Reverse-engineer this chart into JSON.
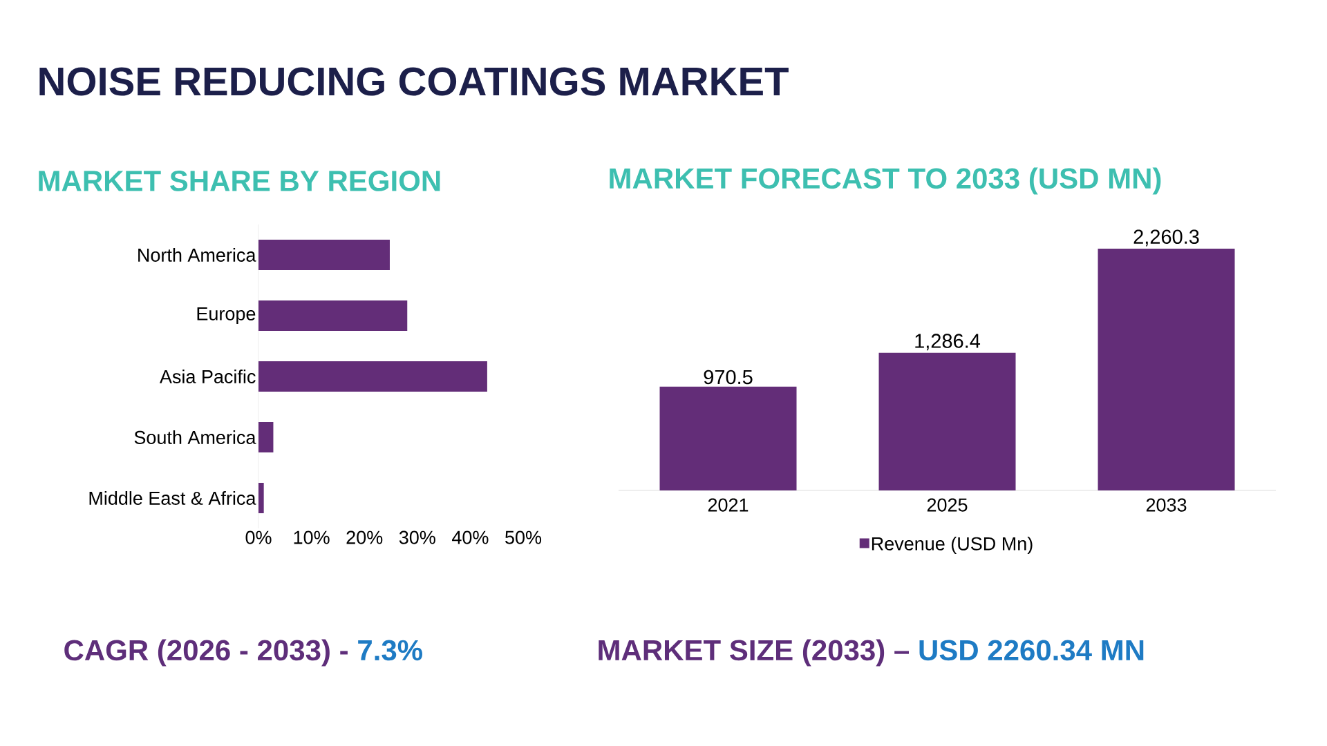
{
  "chart_data": [
    {
      "type": "other",
      "title": "NOISE REDUCING COATINGS MARKET"
    },
    {
      "type": "bar",
      "orientation": "horizontal",
      "title": "MARKET SHARE BY REGION",
      "categories": [
        "North America",
        "Europe",
        "Asia Pacific",
        "South America",
        "Middle East & Africa"
      ],
      "values": [
        24.8,
        28.1,
        43.2,
        2.8,
        1.0
      ],
      "color": "#632d78",
      "xlim": [
        0,
        50
      ],
      "xticks": [
        {
          "value": 0,
          "label": "0%"
        },
        {
          "value": 10,
          "label": "10%"
        },
        {
          "value": 20,
          "label": "20%"
        },
        {
          "value": 30,
          "label": "30%"
        },
        {
          "value": 40,
          "label": "40%"
        },
        {
          "value": 50,
          "label": "50%"
        }
      ],
      "annotations": [
        "CAGR (2026 - 2033) -",
        "7.3%"
      ]
    },
    {
      "type": "bar",
      "title": "MARKET FORECAST TO 2033 (USD MN)",
      "categories": [
        "2021",
        "2025",
        "2033"
      ],
      "series": [
        {
          "name": "Revenue (USD Mn)",
          "color": "#632d78",
          "values": [
            970.5,
            1286.4,
            2260.3
          ],
          "value_labels": [
            "970.5",
            "1,286.4",
            "2,260.3"
          ]
        }
      ],
      "legend": "bottom",
      "tick_labels": "x",
      "annotations": [
        "MARKET SIZE (2033) –",
        "USD 2260.34 MN"
      ]
    }
  ]
}
